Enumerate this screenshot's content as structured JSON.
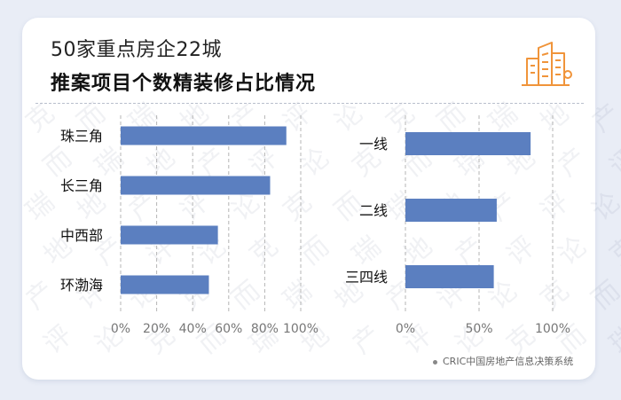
{
  "header": {
    "title_line1": "50家重点房企22城",
    "title_line2": "推案项目个数精装修占比情况"
  },
  "source": "CRIC中国房地产信息决策系统",
  "watermark_text": "克而瑞地产评论",
  "colors": {
    "bar": "#5b7fc0",
    "icon": "#f0943a"
  },
  "icon": "buildings-icon",
  "chart_data": [
    {
      "type": "bar",
      "orientation": "horizontal",
      "categories": [
        "珠三角",
        "长三角",
        "中西部",
        "环渤海"
      ],
      "values": [
        92,
        83,
        54,
        49
      ],
      "xlim": [
        0,
        100
      ],
      "x_ticks": [
        "0%",
        "20%",
        "40%",
        "60%",
        "80%",
        "100%"
      ],
      "grid": true
    },
    {
      "type": "bar",
      "orientation": "horizontal",
      "categories": [
        "一线",
        "二线",
        "三四线"
      ],
      "values": [
        85,
        62,
        60
      ],
      "xlim": [
        0,
        100
      ],
      "x_ticks": [
        "0%",
        "50%",
        "100%"
      ],
      "grid": true
    }
  ]
}
